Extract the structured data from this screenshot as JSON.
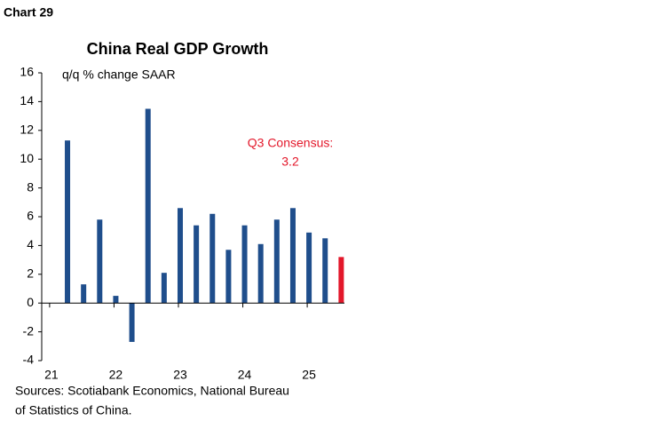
{
  "label": "Chart 29",
  "chart_data": {
    "type": "bar",
    "title": "China Real GDP Growth",
    "subtitle": "q/q % change SAAR",
    "x": [
      21.25,
      21.5,
      21.75,
      22,
      22.25,
      22.5,
      22.75,
      23,
      23.25,
      23.5,
      23.75,
      24,
      24.25,
      24.5,
      24.75,
      25,
      25.25,
      25.5
    ],
    "values": [
      11.3,
      1.3,
      5.8,
      0.5,
      -2.7,
      13.5,
      2.1,
      6.6,
      5.4,
      6.2,
      3.7,
      5.4,
      4.1,
      5.8,
      6.6,
      4.9,
      4.5,
      3.2
    ],
    "colors": [
      "#1f4e8c",
      "#1f4e8c",
      "#1f4e8c",
      "#1f4e8c",
      "#1f4e8c",
      "#1f4e8c",
      "#1f4e8c",
      "#1f4e8c",
      "#1f4e8c",
      "#1f4e8c",
      "#1f4e8c",
      "#1f4e8c",
      "#1f4e8c",
      "#1f4e8c",
      "#1f4e8c",
      "#1f4e8c",
      "#1f4e8c",
      "#e3172a"
    ],
    "xlim": [
      20.85,
      25.55
    ],
    "xticks": [
      21,
      22,
      23,
      24,
      25
    ],
    "ylim": [
      -4,
      16
    ],
    "yticks": [
      -4,
      -2,
      0,
      2,
      4,
      6,
      8,
      10,
      12,
      14,
      16
    ],
    "annotation": [
      "Q3 Consensus:",
      "3.2"
    ],
    "annotation_color": "#e3172a",
    "source": [
      "Sources: Scotiabank Economics, National Bureau",
      "of Statistics of China."
    ]
  }
}
